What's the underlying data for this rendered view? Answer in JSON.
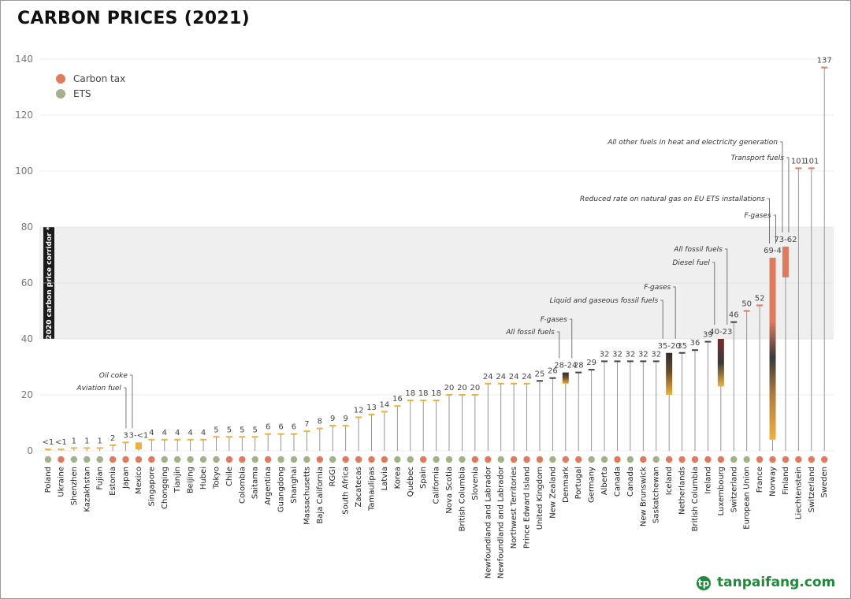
{
  "chart_data": {
    "type": "bar",
    "title": "CARBON PRICES (2021)",
    "ylim": [
      0,
      140
    ],
    "yticks": [
      0,
      20,
      40,
      60,
      80,
      100,
      120,
      140
    ],
    "corridor": {
      "label": "2020 carbon price corridor *",
      "from": 40,
      "to": 80
    },
    "legend": [
      {
        "name": "Carbon tax",
        "color": "#e07a5f"
      },
      {
        "name": "ETS",
        "color": "#a3b18a"
      }
    ],
    "colors": {
      "tax": "#e07a5f",
      "ets": "#a3b18a",
      "tick_gold": "#f0b040",
      "dark": "#444444",
      "grid": "#cccccc",
      "band": "#efefef"
    },
    "bars": [
      {
        "name": "Poland",
        "type": "ets",
        "value": 0.5,
        "label": "<1"
      },
      {
        "name": "Ukraine",
        "type": "tax",
        "value": 0.5,
        "label": "<1"
      },
      {
        "name": "Shenzhen",
        "type": "ets",
        "value": 1,
        "label": "1"
      },
      {
        "name": "Kazakhstan",
        "type": "ets",
        "value": 1,
        "label": "1"
      },
      {
        "name": "Fujian",
        "type": "ets",
        "value": 1,
        "label": "1"
      },
      {
        "name": "Estonia",
        "type": "tax",
        "value": 2,
        "label": "2"
      },
      {
        "name": "Japan",
        "type": "tax",
        "value": 3,
        "label": "3"
      },
      {
        "name": "Mexico",
        "type": "tax",
        "value": 3,
        "low": 0.5,
        "label": "3-<1"
      },
      {
        "name": "Singapore",
        "type": "tax",
        "value": 4,
        "label": "4"
      },
      {
        "name": "Chongqing",
        "type": "ets",
        "value": 4,
        "label": "4"
      },
      {
        "name": "Tianjin",
        "type": "ets",
        "value": 4,
        "label": "4"
      },
      {
        "name": "Beijing",
        "type": "ets",
        "value": 4,
        "label": "4"
      },
      {
        "name": "Hubei",
        "type": "ets",
        "value": 4,
        "label": "4"
      },
      {
        "name": "Tokyo",
        "type": "ets",
        "value": 5,
        "label": "5"
      },
      {
        "name": "Chile",
        "type": "tax",
        "value": 5,
        "label": "5"
      },
      {
        "name": "Colombia",
        "type": "tax",
        "value": 5,
        "label": "5"
      },
      {
        "name": "Saitama",
        "type": "ets",
        "value": 5,
        "label": "5"
      },
      {
        "name": "Argentina",
        "type": "tax",
        "value": 6,
        "label": "6"
      },
      {
        "name": "Guangdong",
        "type": "ets",
        "value": 6,
        "label": "6"
      },
      {
        "name": "Shanghai",
        "type": "ets",
        "value": 6,
        "label": "6"
      },
      {
        "name": "Massachusetts",
        "type": "ets",
        "value": 7,
        "label": "7"
      },
      {
        "name": "Baja California",
        "type": "tax",
        "value": 8,
        "label": "8"
      },
      {
        "name": "RGGI",
        "type": "ets",
        "value": 9,
        "label": "9"
      },
      {
        "name": "South Africa",
        "type": "tax",
        "value": 9,
        "label": "9"
      },
      {
        "name": "Zacatecas",
        "type": "tax",
        "value": 12,
        "label": "12"
      },
      {
        "name": "Tamaulipas",
        "type": "tax",
        "value": 13,
        "label": "13"
      },
      {
        "name": "Latvia",
        "type": "tax",
        "value": 14,
        "label": "14"
      },
      {
        "name": "Korea",
        "type": "ets",
        "value": 16,
        "label": "16"
      },
      {
        "name": "Québec",
        "type": "ets",
        "value": 18,
        "label": "18"
      },
      {
        "name": "Spain",
        "type": "tax",
        "value": 18,
        "label": "18"
      },
      {
        "name": "California",
        "type": "ets",
        "value": 18,
        "label": "18"
      },
      {
        "name": "Nova Scotia",
        "type": "ets",
        "value": 20,
        "label": "20"
      },
      {
        "name": "British Columbia",
        "type": "ets",
        "value": 20,
        "label": "20"
      },
      {
        "name": "Slovenia",
        "type": "tax",
        "value": 20,
        "label": "20"
      },
      {
        "name": "Newfoundland and Labrador",
        "type": "tax",
        "value": 24,
        "label": "24"
      },
      {
        "name": "Newfoundland and Labrador",
        "type": "ets",
        "value": 24,
        "label": "24"
      },
      {
        "name": "Northwest Territories",
        "type": "tax",
        "value": 24,
        "label": "24"
      },
      {
        "name": "Prince Edward Island",
        "type": "tax",
        "value": 24,
        "label": "24"
      },
      {
        "name": "United Kingdom",
        "type": "tax",
        "value": 25,
        "label": "25"
      },
      {
        "name": "New Zealand",
        "type": "ets",
        "value": 26,
        "label": "26"
      },
      {
        "name": "Denmark",
        "type": "tax",
        "value": 28,
        "low": 24,
        "label": "28-24"
      },
      {
        "name": "Portugal",
        "type": "tax",
        "value": 28,
        "label": "28"
      },
      {
        "name": "Germany",
        "type": "ets",
        "value": 29,
        "label": "29"
      },
      {
        "name": "Alberta",
        "type": "ets",
        "value": 32,
        "label": "32"
      },
      {
        "name": "Canada",
        "type": "tax",
        "value": 32,
        "label": "32"
      },
      {
        "name": "Canada",
        "type": "ets",
        "value": 32,
        "label": "32"
      },
      {
        "name": "New Brunswick",
        "type": "tax",
        "value": 32,
        "label": "32"
      },
      {
        "name": "Saskatchewan",
        "type": "ets",
        "value": 32,
        "label": "32"
      },
      {
        "name": "Iceland",
        "type": "tax",
        "value": 35,
        "low": 20,
        "label": "35-20"
      },
      {
        "name": "Netherlands",
        "type": "tax",
        "value": 35,
        "label": "35"
      },
      {
        "name": "British Columbia",
        "type": "tax",
        "value": 36,
        "label": "36"
      },
      {
        "name": "Ireland",
        "type": "tax",
        "value": 39,
        "label": "39"
      },
      {
        "name": "Luxembourg",
        "type": "tax",
        "value": 40,
        "low": 23,
        "label": "40-23"
      },
      {
        "name": "Switzerland",
        "type": "ets",
        "value": 46,
        "label": "46"
      },
      {
        "name": "European Union",
        "type": "ets",
        "value": 50,
        "label": "50"
      },
      {
        "name": "France",
        "type": "tax",
        "value": 52,
        "label": "52"
      },
      {
        "name": "Norway",
        "type": "tax",
        "value": 69,
        "low": 4,
        "label": "69-4"
      },
      {
        "name": "Finland",
        "type": "tax",
        "value": 73,
        "low": 62,
        "label": "73-62"
      },
      {
        "name": "Liechtenstein",
        "type": "tax",
        "value": 101,
        "label": "101"
      },
      {
        "name": "Switzerland",
        "type": "tax",
        "value": 101,
        "label": "101"
      },
      {
        "name": "Sweden",
        "type": "tax",
        "value": 137,
        "label": "137"
      }
    ],
    "annotations": [
      {
        "bar": 7,
        "lines": [
          "Oil coke",
          "Aviation fuel"
        ]
      },
      {
        "bar": 40,
        "lines": [
          "F-gases",
          "All fossil fuels"
        ]
      },
      {
        "bar": 48,
        "lines": [
          "F-gases",
          "Liquid and gaseous fossil fuels"
        ]
      },
      {
        "bar": 52,
        "lines": [
          "All fossil fuels",
          "Diesel fuel"
        ]
      },
      {
        "bar": 56,
        "lines": [
          "F-gases",
          "Reduced rate on natural gas on EU ETS installations"
        ]
      },
      {
        "bar": 57,
        "lines": [
          "Transport fuels",
          "All other fuels in heat and electricity generation"
        ]
      }
    ]
  },
  "watermark": {
    "icon": "tp",
    "text": "tanpaifang.com"
  }
}
